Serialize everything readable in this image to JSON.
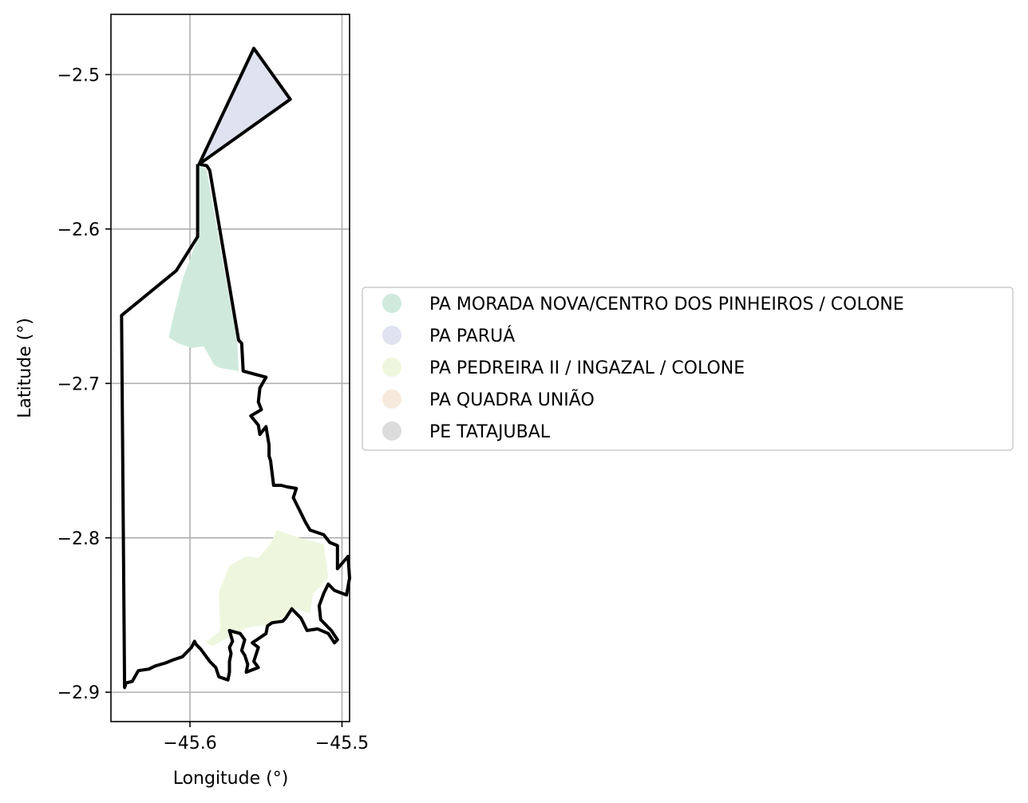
{
  "chart_data": {
    "type": "map",
    "xlabel": "Longitude (°)",
    "ylabel": "Latitude (°)",
    "xlim": [
      -45.652,
      -45.495
    ],
    "ylim": [
      -2.919,
      -2.461
    ],
    "xticks": [
      -45.6,
      -45.5
    ],
    "xtick_labels": [
      "−45.6",
      "−45.5"
    ],
    "yticks": [
      -2.5,
      -2.6,
      -2.7,
      -2.8,
      -2.9
    ],
    "ytick_labels": [
      "−2.5",
      "−2.6",
      "−2.7",
      "−2.8",
      "−2.9"
    ],
    "grid": true,
    "legend_position": "center-right",
    "legend": [
      {
        "label": "PA MORADA NOVA/CENTRO DOS PINHEIROS / COLONE",
        "color": "#cfeadd"
      },
      {
        "label": "PA PARUÁ",
        "color": "#dfe3f0"
      },
      {
        "label": "PA PEDREIRA II / INGAZAL / COLONE",
        "color": "#eef7de"
      },
      {
        "label": "PA QUADRA UNIÃO",
        "color": "#f5eadc"
      },
      {
        "label": "PE TATAJUBAL",
        "color": "#dcdcdc"
      }
    ],
    "areas": [
      {
        "legend_index": 1,
        "polygon": [
          [
            -45.558,
            -2.483
          ],
          [
            -45.534,
            -2.516
          ],
          [
            -45.594,
            -2.558
          ]
        ]
      },
      {
        "legend_index": 0,
        "polygon": [
          [
            -45.594,
            -2.558
          ],
          [
            -45.589,
            -2.562
          ],
          [
            -45.569,
            -2.673
          ],
          [
            -45.568,
            -2.692
          ],
          [
            -45.58,
            -2.69
          ],
          [
            -45.584,
            -2.688
          ],
          [
            -45.591,
            -2.676
          ],
          [
            -45.599,
            -2.677
          ],
          [
            -45.608,
            -2.674
          ],
          [
            -45.614,
            -2.67
          ],
          [
            -45.611,
            -2.657
          ],
          [
            -45.605,
            -2.633
          ],
          [
            -45.599,
            -2.617
          ],
          [
            -45.595,
            -2.606
          ],
          [
            -45.595,
            -2.59
          ],
          [
            -45.595,
            -2.574
          ]
        ]
      },
      {
        "legend_index": 2,
        "polygon": [
          [
            -45.543,
            -2.795
          ],
          [
            -45.528,
            -2.8
          ],
          [
            -45.512,
            -2.804
          ],
          [
            -45.509,
            -2.826
          ],
          [
            -45.519,
            -2.836
          ],
          [
            -45.521,
            -2.849
          ],
          [
            -45.53,
            -2.846
          ],
          [
            -45.545,
            -2.856
          ],
          [
            -45.562,
            -2.858
          ],
          [
            -45.585,
            -2.87
          ],
          [
            -45.59,
            -2.868
          ],
          [
            -45.58,
            -2.86
          ],
          [
            -45.581,
            -2.835
          ],
          [
            -45.574,
            -2.818
          ],
          [
            -45.563,
            -2.812
          ],
          [
            -45.555,
            -2.813
          ],
          [
            -45.547,
            -2.804
          ]
        ]
      }
    ],
    "outline": [
      [
        -45.594,
        -2.558
      ],
      [
        -45.558,
        -2.483
      ],
      [
        -45.534,
        -2.516
      ],
      [
        -45.594,
        -2.558
      ],
      [
        -45.589,
        -2.559
      ],
      [
        -45.587,
        -2.562
      ],
      [
        -45.568,
        -2.672
      ],
      [
        -45.566,
        -2.674
      ],
      [
        -45.565,
        -2.692
      ],
      [
        -45.55,
        -2.696
      ],
      [
        -45.554,
        -2.703
      ],
      [
        -45.555,
        -2.712
      ],
      [
        -45.553,
        -2.717
      ],
      [
        -45.56,
        -2.721
      ],
      [
        -45.555,
        -2.727
      ],
      [
        -45.554,
        -2.733
      ],
      [
        -45.55,
        -2.728
      ],
      [
        -45.548,
        -2.74
      ],
      [
        -45.548,
        -2.747
      ],
      [
        -45.547,
        -2.75
      ],
      [
        -45.545,
        -2.766
      ],
      [
        -45.54,
        -2.766
      ],
      [
        -45.536,
        -2.767
      ],
      [
        -45.53,
        -2.768
      ],
      [
        -45.532,
        -2.774
      ],
      [
        -45.527,
        -2.784
      ],
      [
        -45.524,
        -2.79
      ],
      [
        -45.521,
        -2.795
      ],
      [
        -45.512,
        -2.798
      ],
      [
        -45.508,
        -2.803
      ],
      [
        -45.503,
        -2.805
      ],
      [
        -45.503,
        -2.82
      ],
      [
        -45.496,
        -2.812
      ],
      [
        -45.495,
        -2.826
      ],
      [
        -45.497,
        -2.837
      ],
      [
        -45.505,
        -2.834
      ],
      [
        -45.509,
        -2.83
      ],
      [
        -45.512,
        -2.836
      ],
      [
        -45.515,
        -2.844
      ],
      [
        -45.514,
        -2.853
      ],
      [
        -45.507,
        -2.86
      ],
      [
        -45.503,
        -2.866
      ],
      [
        -45.505,
        -2.868
      ],
      [
        -45.509,
        -2.862
      ],
      [
        -45.516,
        -2.859
      ],
      [
        -45.523,
        -2.86
      ],
      [
        -45.527,
        -2.852
      ],
      [
        -45.533,
        -2.846
      ],
      [
        -45.537,
        -2.852
      ],
      [
        -45.539,
        -2.854
      ],
      [
        -45.546,
        -2.855
      ],
      [
        -45.549,
        -2.857
      ],
      [
        -45.55,
        -2.862
      ],
      [
        -45.556,
        -2.866
      ],
      [
        -45.559,
        -2.868
      ],
      [
        -45.555,
        -2.871
      ],
      [
        -45.558,
        -2.88
      ],
      [
        -45.555,
        -2.884
      ],
      [
        -45.563,
        -2.887
      ],
      [
        -45.562,
        -2.882
      ],
      [
        -45.564,
        -2.876
      ],
      [
        -45.566,
        -2.873
      ],
      [
        -45.564,
        -2.866
      ],
      [
        -45.567,
        -2.862
      ],
      [
        -45.574,
        -2.86
      ],
      [
        -45.572,
        -2.867
      ],
      [
        -45.574,
        -2.871
      ],
      [
        -45.573,
        -2.875
      ],
      [
        -45.574,
        -2.88
      ],
      [
        -45.574,
        -2.887
      ],
      [
        -45.575,
        -2.892
      ],
      [
        -45.581,
        -2.89
      ],
      [
        -45.583,
        -2.884
      ],
      [
        -45.587,
        -2.88
      ],
      [
        -45.59,
        -2.876
      ],
      [
        -45.593,
        -2.872
      ],
      [
        -45.596,
        -2.869
      ],
      [
        -45.597,
        -2.867
      ],
      [
        -45.599,
        -2.871
      ],
      [
        -45.605,
        -2.877
      ],
      [
        -45.611,
        -2.879
      ],
      [
        -45.616,
        -2.881
      ],
      [
        -45.623,
        -2.883
      ],
      [
        -45.627,
        -2.885
      ],
      [
        -45.634,
        -2.886
      ],
      [
        -45.638,
        -2.893
      ],
      [
        -45.642,
        -2.894
      ],
      [
        -45.643,
        -2.897
      ],
      [
        -45.645,
        -2.656
      ],
      [
        -45.609,
        -2.627
      ],
      [
        -45.595,
        -2.605
      ],
      [
        -45.595,
        -2.558
      ]
    ]
  }
}
